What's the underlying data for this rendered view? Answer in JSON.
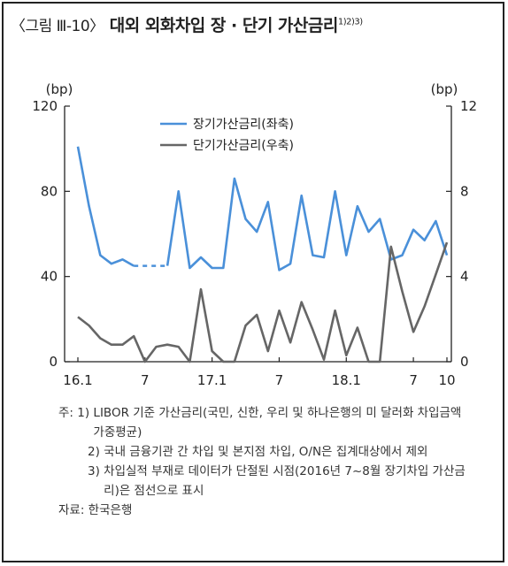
{
  "figure": {
    "label": "〈그림 Ⅲ-10〉",
    "title": "대외 외화차입 장 · 단기 가산금리",
    "title_sup": "1)2)3)"
  },
  "chart_data": {
    "type": "line",
    "left_unit": "(bp)",
    "right_unit": "(bp)",
    "left_ylim": [
      0,
      120
    ],
    "right_ylim": [
      0,
      12
    ],
    "left_ticks": [
      "0",
      "40",
      "80",
      "120"
    ],
    "right_ticks": [
      "0",
      "4",
      "8",
      "12"
    ],
    "x_ticks": [
      "16.1",
      "7",
      "17.1",
      "7",
      "18.1",
      "7",
      "10"
    ],
    "x_tick_index": [
      0,
      6,
      12,
      18,
      24,
      30,
      33
    ],
    "n_points": 34,
    "series": [
      {
        "name": "장기가산금리(좌축)",
        "axis": "left",
        "color": "#4a90d9",
        "values": [
          101,
          73,
          50,
          46,
          48,
          45,
          null,
          null,
          45,
          80,
          44,
          49,
          44,
          44,
          86,
          67,
          61,
          75,
          43,
          46,
          78,
          50,
          49,
          80,
          50,
          73,
          61,
          67,
          48,
          50,
          62,
          57,
          66,
          50
        ],
        "dashed_segment": [
          5,
          8
        ]
      },
      {
        "name": "단기가산금리(우축)",
        "axis": "right",
        "color": "#666666",
        "values": [
          2.1,
          1.7,
          1.1,
          0.8,
          0.8,
          1.2,
          0.0,
          0.7,
          0.8,
          0.7,
          0.0,
          3.4,
          0.5,
          0.0,
          0.0,
          1.7,
          2.2,
          0.5,
          2.4,
          0.9,
          2.8,
          1.5,
          0.1,
          2.4,
          0.3,
          1.6,
          0.0,
          0.0,
          5.4,
          3.3,
          1.4,
          2.6,
          4.1,
          5.6
        ]
      }
    ]
  },
  "notes": [
    {
      "prefix": "주: 1) ",
      "text": "LIBOR 기준 가산금리(국민, 신한, 우리 및 하나은행의 미 달러화 차입금액 가중평균)"
    },
    {
      "prefix": "2) ",
      "text": "국내 금융기관 간 차입 및 본지점 차입, O/N은 집계대상에서 제외"
    },
    {
      "prefix": "3) ",
      "text": "차입실적 부재로 데이터가 단절된 시점(2016년 7~8월 장기차입 가산금리)은 점선으로 표시"
    }
  ],
  "source": "자료: 한국은행"
}
